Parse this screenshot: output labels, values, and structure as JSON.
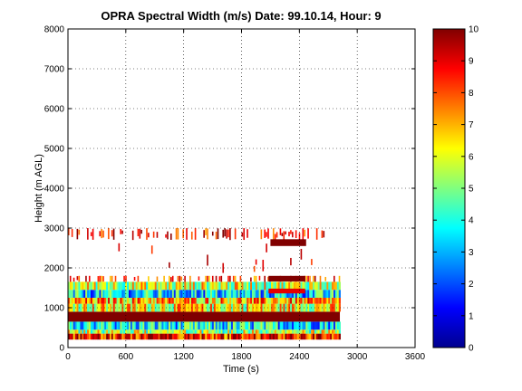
{
  "chart_data": {
    "type": "heatmap",
    "title": "OPRA Spectral Width (m/s)  Date: 99.10.14, Hour: 9",
    "xlabel": "Time (s)",
    "ylabel": "Height (m AGL)",
    "xlim": [
      0,
      3600
    ],
    "ylim": [
      0,
      8000
    ],
    "xticks": [
      0,
      600,
      1200,
      1800,
      2400,
      3000,
      3600
    ],
    "yticks": [
      0,
      1000,
      2000,
      3000,
      4000,
      5000,
      6000,
      7000,
      8000
    ],
    "grid": true,
    "colormap": "jet",
    "colorbar": {
      "min": 0,
      "max": 10,
      "ticks": [
        0,
        1,
        2,
        3,
        4,
        5,
        6,
        7,
        8,
        9,
        10
      ]
    },
    "layers": [
      {
        "h0": 200,
        "h1": 350,
        "t0": 0,
        "t1": 2820,
        "value": 8.6,
        "mode": "noisy"
      },
      {
        "h0": 350,
        "h1": 450,
        "t0": 0,
        "t1": 2820,
        "value": 5.5,
        "mode": "noisy"
      },
      {
        "h0": 450,
        "h1": 650,
        "t0": 0,
        "t1": 2820,
        "value": 3.6,
        "mode": "noisy"
      },
      {
        "h0": 650,
        "h1": 900,
        "t0": 0,
        "t1": 2820,
        "value": 10.0,
        "mode": "solid"
      },
      {
        "h0": 900,
        "h1": 1100,
        "t0": 0,
        "t1": 2820,
        "value": 6.3,
        "mode": "noisy"
      },
      {
        "h0": 1100,
        "h1": 1250,
        "t0": 0,
        "t1": 2820,
        "value": 7.0,
        "mode": "noisy"
      },
      {
        "h0": 1250,
        "h1": 1450,
        "t0": 0,
        "t1": 2820,
        "value": 3.4,
        "mode": "noisy"
      },
      {
        "h0": 1450,
        "h1": 1650,
        "t0": 0,
        "t1": 2820,
        "value": 5.8,
        "mode": "noisy"
      },
      {
        "h0": 1650,
        "h1": 1800,
        "t0": 0,
        "t1": 2820,
        "value": 8.2,
        "mode": "sparse"
      },
      {
        "h0": 1800,
        "h1": 2700,
        "t0": 0,
        "t1": 2700,
        "value": 8.5,
        "mode": "veryspare"
      },
      {
        "h0": 2700,
        "h1": 3000,
        "t0": 0,
        "t1": 2650,
        "value": 8.6,
        "mode": "sparse"
      },
      {
        "h0": 1660,
        "h1": 1800,
        "t0": 2080,
        "t1": 2460,
        "value": 10.0,
        "mode": "solid"
      },
      {
        "h0": 1360,
        "h1": 1480,
        "t0": 2080,
        "t1": 2460,
        "value": 9.0,
        "mode": "solid"
      },
      {
        "h0": 2550,
        "h1": 2720,
        "t0": 2100,
        "t1": 2470,
        "value": 10.0,
        "mode": "solid"
      }
    ]
  }
}
